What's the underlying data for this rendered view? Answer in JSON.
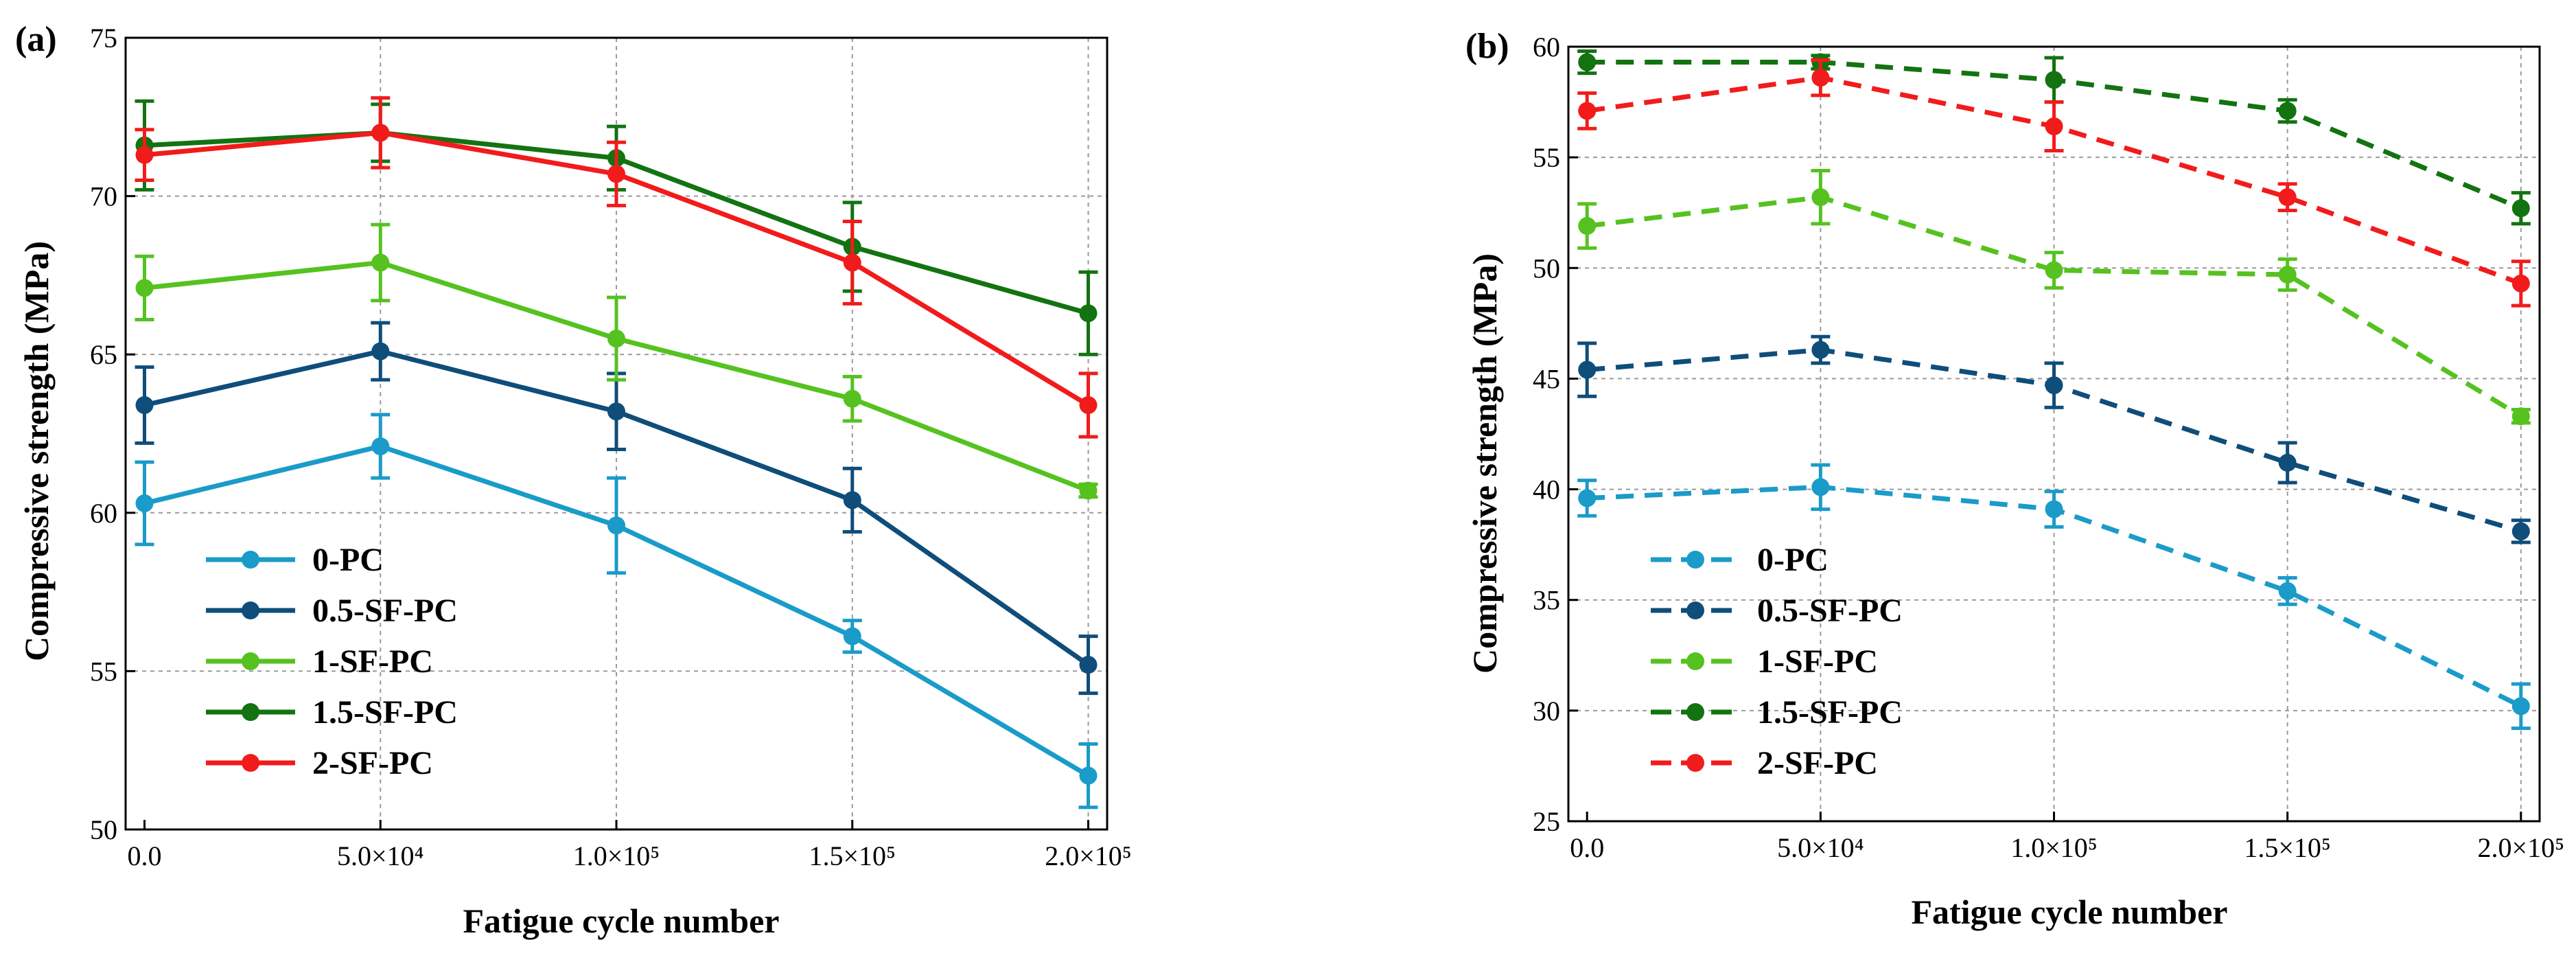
{
  "chart_data": [
    {
      "type": "line",
      "panel_label": "(a)",
      "xlabel": "Fatigue cycle number",
      "ylabel": "Compressive strength (MPa)",
      "x": [
        0,
        50000,
        100000,
        150000,
        200000
      ],
      "x_tick_labels": [
        "0.0",
        "5.0×10⁴",
        "1.0×10⁵",
        "1.5×10⁵",
        "2.0×10⁵"
      ],
      "xlim": [
        -4000,
        204000
      ],
      "ylim": [
        50,
        75
      ],
      "y_ticks": [
        50,
        55,
        60,
        65,
        70,
        75
      ],
      "grid": true,
      "line_style": "solid",
      "legend_position": "lower-left",
      "series": [
        {
          "name": "0-PC",
          "color": "#1a9bc9",
          "values": [
            60.3,
            62.1,
            59.6,
            56.1,
            51.7
          ],
          "errors": [
            1.3,
            1.0,
            1.5,
            0.5,
            1.0
          ]
        },
        {
          "name": "0.5-SF-PC",
          "color": "#0f4d7a",
          "values": [
            63.4,
            65.1,
            63.2,
            60.4,
            55.2
          ],
          "errors": [
            1.2,
            0.9,
            1.2,
            1.0,
            0.9
          ]
        },
        {
          "name": "1-SF-PC",
          "color": "#55c21f",
          "values": [
            67.1,
            67.9,
            65.5,
            63.6,
            60.7
          ],
          "errors": [
            1.0,
            1.2,
            1.3,
            0.7,
            0.2
          ]
        },
        {
          "name": "1.5-SF-PC",
          "color": "#137311",
          "values": [
            71.6,
            72.0,
            71.2,
            68.4,
            66.3
          ],
          "errors": [
            1.4,
            0.9,
            1.0,
            1.4,
            1.3
          ]
        },
        {
          "name": "2-SF-PC",
          "color": "#f21b1b",
          "values": [
            71.3,
            72.0,
            70.7,
            67.9,
            63.4
          ],
          "errors": [
            0.8,
            1.1,
            1.0,
            1.3,
            1.0
          ]
        }
      ]
    },
    {
      "type": "line",
      "panel_label": "(b)",
      "xlabel": "Fatigue cycle number",
      "ylabel": "Compressive strength (MPa)",
      "x": [
        0,
        50000,
        100000,
        150000,
        200000
      ],
      "x_tick_labels": [
        "0.0",
        "5.0×10⁴",
        "1.0×10⁵",
        "1.5×10⁵",
        "2.0×10⁵"
      ],
      "xlim": [
        -4000,
        204000
      ],
      "ylim": [
        25,
        60
      ],
      "y_ticks": [
        25,
        30,
        35,
        40,
        45,
        50,
        55,
        60
      ],
      "grid": true,
      "line_style": "dashed",
      "legend_position": "lower-left",
      "series": [
        {
          "name": "0-PC",
          "color": "#1a9bc9",
          "values": [
            39.6,
            40.1,
            39.1,
            35.4,
            30.2
          ],
          "errors": [
            0.8,
            1.0,
            0.8,
            0.6,
            1.0
          ]
        },
        {
          "name": "0.5-SF-PC",
          "color": "#0f4d7a",
          "values": [
            45.4,
            46.3,
            44.7,
            41.2,
            38.1
          ],
          "errors": [
            1.2,
            0.6,
            1.0,
            0.9,
            0.5
          ]
        },
        {
          "name": "1-SF-PC",
          "color": "#55c21f",
          "values": [
            51.9,
            53.2,
            49.9,
            49.7,
            43.3
          ],
          "errors": [
            1.0,
            1.2,
            0.8,
            0.7,
            0.3
          ]
        },
        {
          "name": "1.5-SF-PC",
          "color": "#137311",
          "values": [
            59.3,
            59.3,
            58.5,
            57.1,
            52.7
          ],
          "errors": [
            0.5,
            0.3,
            1.0,
            0.5,
            0.7
          ]
        },
        {
          "name": "2-SF-PC",
          "color": "#f21b1b",
          "values": [
            57.1,
            58.6,
            56.4,
            53.2,
            49.3
          ],
          "errors": [
            0.8,
            0.8,
            1.1,
            0.6,
            1.0
          ]
        }
      ]
    }
  ]
}
